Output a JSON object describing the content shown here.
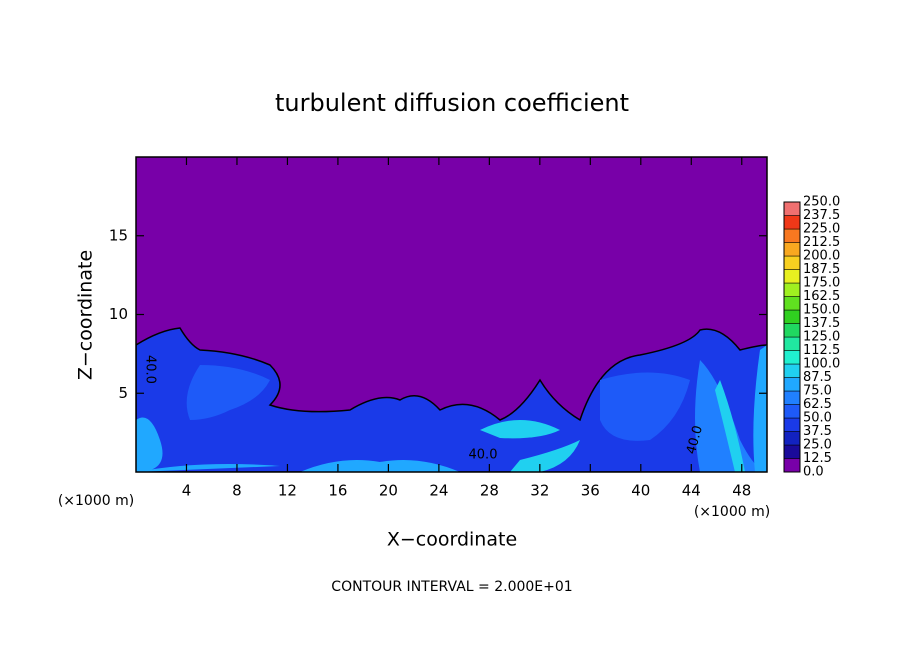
{
  "chart_data": {
    "type": "contour",
    "title": "turbulent diffusion coefficient",
    "xlabel": "X−coordinate",
    "ylabel": "Z−coordinate",
    "x_unit": "(×1000 m)",
    "annotation": "CONTOUR INTERVAL = 2.000E+01",
    "contour_labels": [
      "40.0",
      "40.0",
      "40.0"
    ],
    "xlim": [
      0,
      50
    ],
    "xticks": [
      4,
      8,
      12,
      16,
      20,
      24,
      28,
      32,
      36,
      40,
      44,
      48
    ],
    "ylim": [
      0,
      20
    ],
    "yticks": [
      5,
      10,
      15
    ],
    "colorbar": {
      "levels": [
        {
          "value": 0,
          "label": "0.0"
        },
        12.5,
        {
          "value": 25,
          "label": "25.0"
        },
        37.5,
        {
          "value": 50,
          "label": "50.0"
        },
        62.5,
        {
          "value": 75,
          "label": "75.0"
        },
        87.5,
        {
          "value": 100,
          "label": "100.0"
        },
        112.5,
        {
          "value": 125,
          "label": "125.0"
        },
        137.5,
        {
          "value": 150,
          "label": "150.0"
        },
        162.5,
        {
          "value": 175,
          "label": "175.0"
        },
        187.5,
        {
          "value": 200,
          "label": "200.0"
        },
        212.5,
        {
          "value": 225,
          "label": "225.0"
        },
        237.5,
        {
          "value": 250,
          "label": "250.0"
        }
      ],
      "colors": [
        "#7800a8",
        "#1a0a9a",
        "#1222c0",
        "#1a3ae8",
        "#1e5af8",
        "#2080ff",
        "#20a8ff",
        "#20d0f0",
        "#20f0d0",
        "#20e8a0",
        "#20d860",
        "#30d020",
        "#60e020",
        "#a0f020",
        "#e8f020",
        "#f8d020",
        "#f8a820",
        "#f87820",
        "#f03818",
        "#f07070"
      ]
    }
  }
}
